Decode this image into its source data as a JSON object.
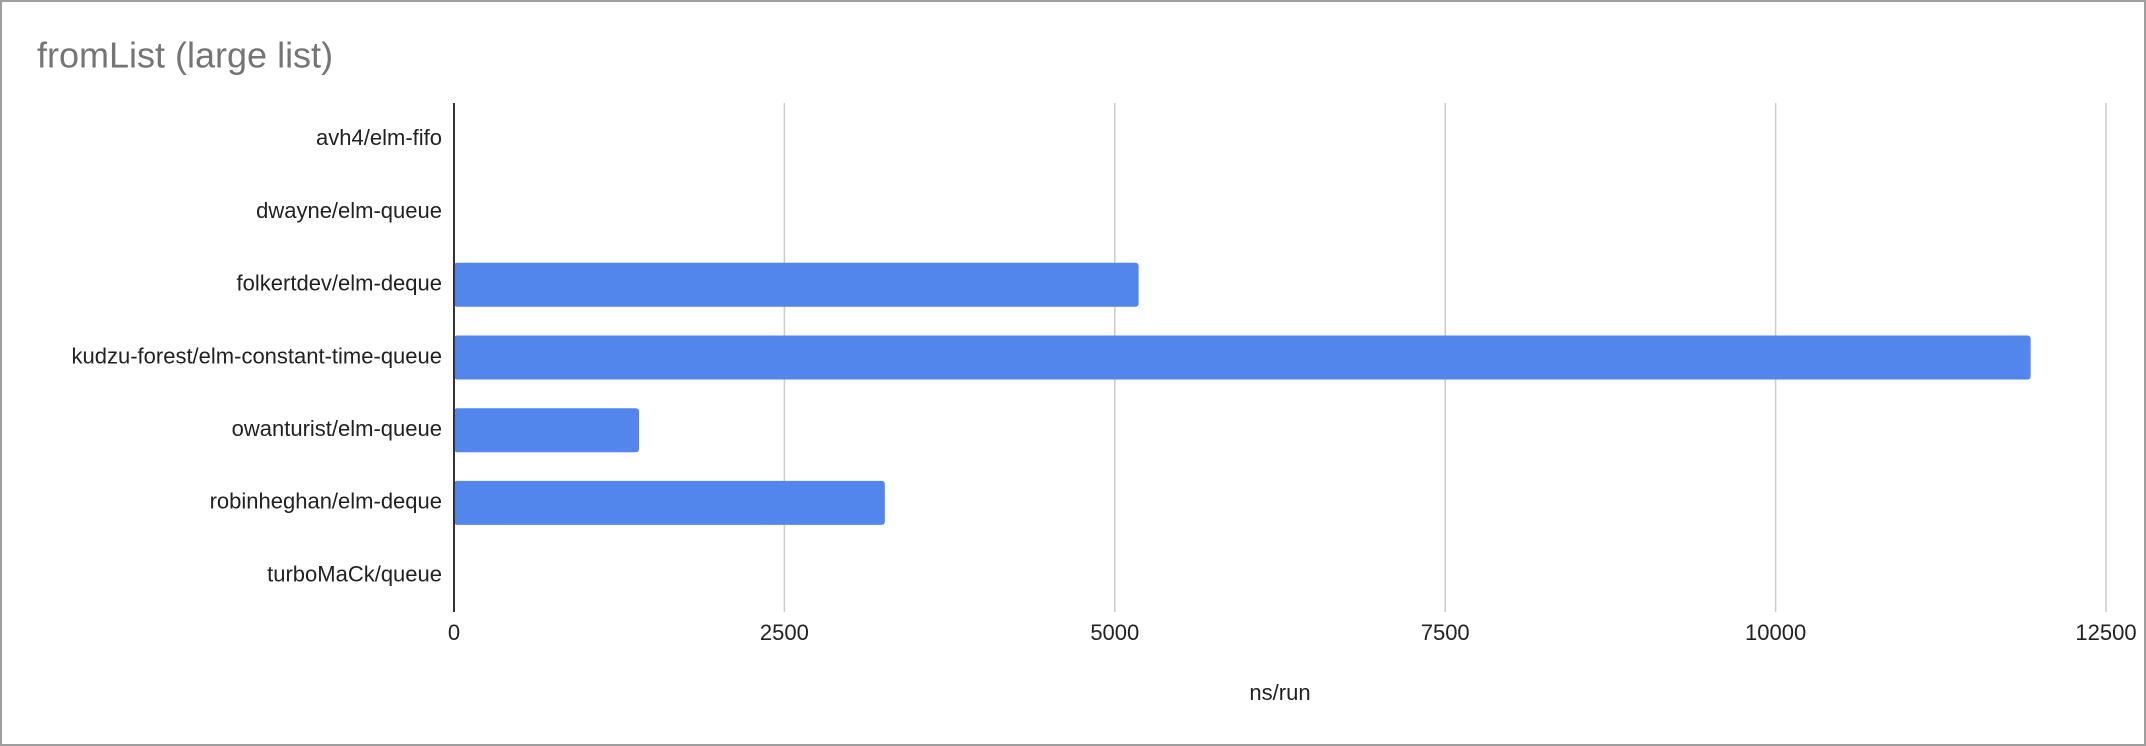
{
  "chart_data": {
    "type": "bar",
    "orientation": "horizontal",
    "title": "fromList (large list)",
    "x_label": "ns/run",
    "categories": [
      "avh4/elm-fifo",
      "dwayne/elm-queue",
      "folkertdev/elm-deque",
      "kudzu-forest/elm-constant-time-queue",
      "owanturist/elm-queue",
      "robinheghan/elm-deque",
      "turboMaCk/queue"
    ],
    "values": [
      0,
      0,
      5180,
      11930,
      1400,
      3260,
      0
    ],
    "color": "#5286ec",
    "xlim": [
      0,
      12500
    ],
    "xticks": [
      0,
      2500,
      5000,
      7500,
      10000,
      12500
    ],
    "grid": true
  }
}
